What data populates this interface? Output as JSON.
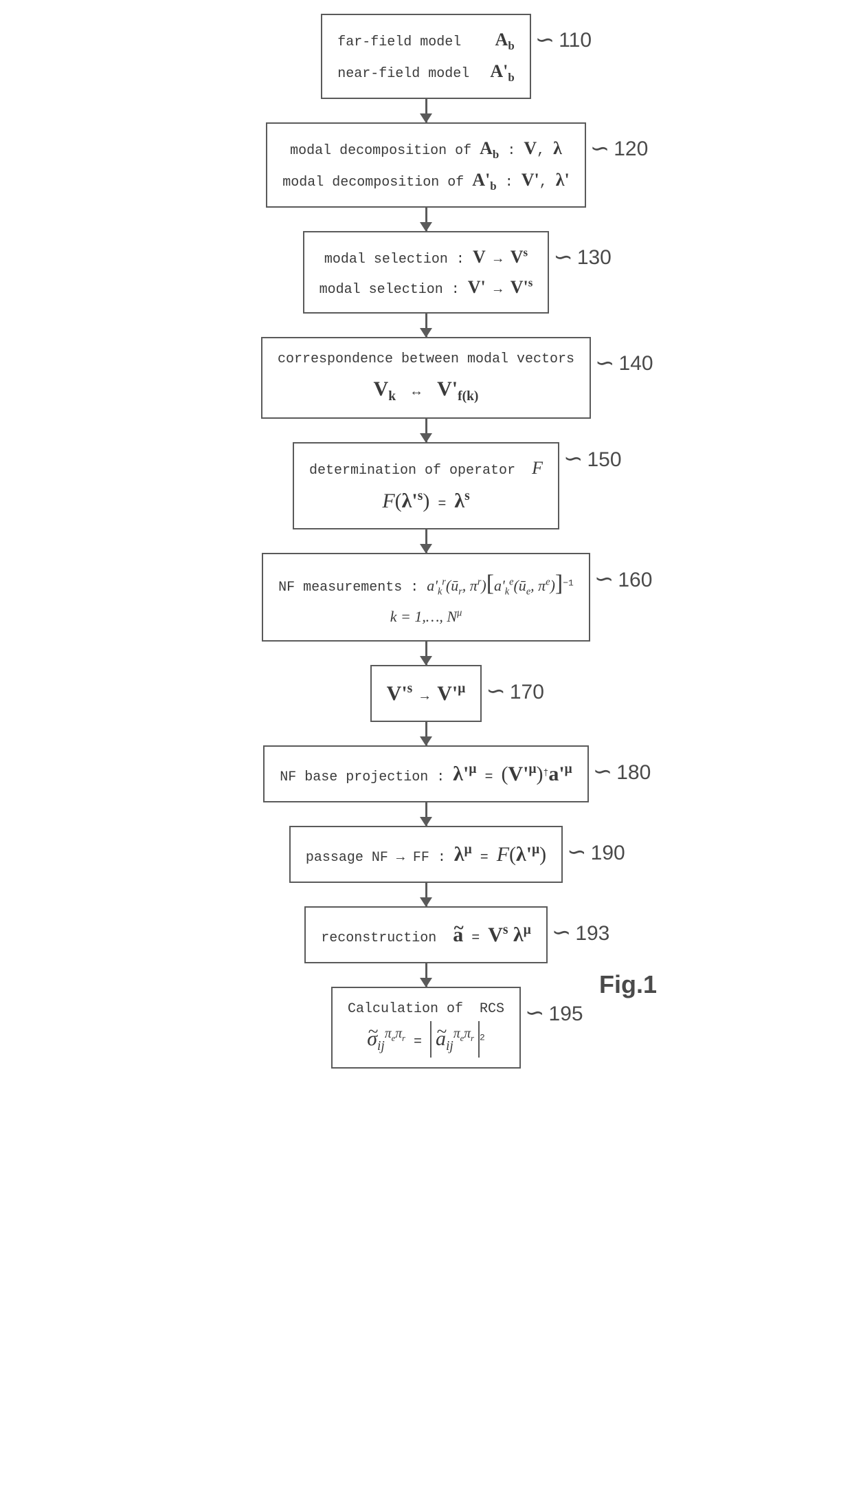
{
  "figure_label": "Fig.1",
  "boxes": [
    {
      "id": "110",
      "lines": [
        {
          "left": "far-field model",
          "right_html": "<span class='bold serif'>A<sub>b</sub></span>"
        },
        {
          "left": "near-field model",
          "right_html": "<span class='bold serif'>A'<sub>b</sub></span>"
        }
      ]
    },
    {
      "id": "120",
      "lines": [
        {
          "text_html": "modal decomposition of <span class='bold serif'>A<sub>b</sub></span> : <span class='bold serif'>V</span>, <span class='bold serif'>λ</span>"
        },
        {
          "text_html": "modal decomposition of <span class='bold serif'>A'<sub>b</sub></span> : <span class='bold serif'>V'</span>, <span class='bold serif'>λ'</span>"
        }
      ]
    },
    {
      "id": "130",
      "lines": [
        {
          "text_html": "modal selection : <span class='bold serif'>V</span> → <span class='bold serif'>V<sup>s</sup></span>"
        },
        {
          "text_html": "modal selection : <span class='bold serif'>V'</span> → <span class='bold serif'>V'<sup>s</sup></span>"
        }
      ]
    },
    {
      "id": "140",
      "lines": [
        {
          "text_html": "correspondence between modal vectors"
        },
        {
          "text_html": "<span class='bold serif big'>V<sub>k</sub></span> &nbsp;↔&nbsp; <span class='bold serif big'>V'<sub>f(k)</sub></span>"
        }
      ]
    },
    {
      "id": "150",
      "lines": [
        {
          "text_html": "determination of operator &nbsp;<span class='ital serif'>F</span>"
        },
        {
          "text_html": "<span class='ital serif big'>F</span><span class='serif big'>(</span><span class='bold serif big'>λ'<sup>s</sup></span><span class='serif big'>)</span> = <span class='bold serif big'>λ<sup>s</sup></span>"
        }
      ]
    },
    {
      "id": "160",
      "lines": [
        {
          "text_html": "NF measurements : <span class='ital serif-sm'>a'<sub>k</sub><sup>r</sup>(ū<sub>r</sub>, π<sup>r</sup>)</span><span class='bracket'>[</span><span class='ital serif-sm'>a'<sub>k</sub><sup>e</sup>(ū<sub>e</sub>, π<sup>e</sup>)</span><span class='bracket'>]</span><sup>−1</sup>"
        },
        {
          "text_html": "<span class='ital serif-sm'>k = 1,…, N<sup>μ</sup></span>"
        }
      ]
    },
    {
      "id": "170",
      "lines": [
        {
          "text_html": "<span class='bold serif big'>V'<sup>s</sup></span> → <span class='bold serif big'>V'<sup>μ</sup></span>"
        }
      ]
    },
    {
      "id": "180",
      "lines": [
        {
          "text_html": "NF base projection : <span class='bold serif big'>λ'<sup>μ</sup></span> = <span class='serif big'>(</span><span class='bold serif big'>V'<sup>μ</sup></span><span class='serif big'>)</span><sup>†</sup><span class='bold serif big'>a'<sup>μ</sup></span>"
        }
      ]
    },
    {
      "id": "190",
      "lines": [
        {
          "text_html": "passage NF → FF : <span class='bold serif big'>λ<sup>μ</sup></span> = <span class='ital serif big'>F</span><span class='serif big'>(</span><span class='bold serif big'>λ'<sup>μ</sup></span><span class='serif big'>)</span>"
        }
      ]
    },
    {
      "id": "193",
      "lines": [
        {
          "text_html": "reconstruction &nbsp;<span class='bold serif big'><span class='tilde'>a</span></span> = <span class='bold serif big'>V<sup>s</sup> λ<sup>μ</sup></span>"
        }
      ]
    },
    {
      "id": "195",
      "lines": [
        {
          "text_html": "Calculation of &nbsp;RCS"
        },
        {
          "text_html": "<span class='ital serif big'><span class='tilde'>σ</span><sub>ij</sub><sup>π<sub>e</sub>π<sub>r</sub></sup></span> = <span class='abs'><span class='ital serif big'><span class='tilde'>a</span><sub>ij</sub><sup>π<sub>e</sub>π<sub>r</sub></sup></span></span><sup>2</sup>"
        }
      ]
    }
  ],
  "colors": {
    "border": "#5a5a5a",
    "text": "#3a3a3a",
    "background": "#ffffff"
  },
  "font": {
    "mono": "Courier New",
    "serif": "Times New Roman",
    "sans": "Arial"
  }
}
